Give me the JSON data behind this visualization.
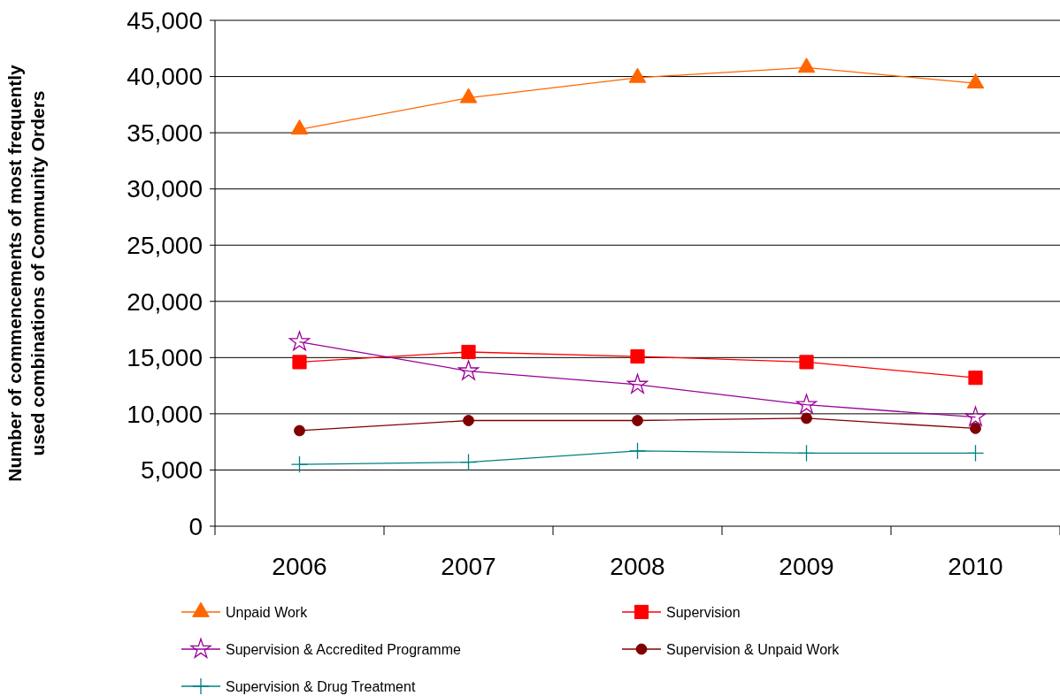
{
  "chart_data": {
    "type": "line",
    "ylabel": "Number of commencements of most frequently used combinations of Community Orders",
    "categories": [
      "2006",
      "2007",
      "2008",
      "2009",
      "2010"
    ],
    "ylim": [
      0,
      45000
    ],
    "yticks": [
      {
        "value": 0,
        "label": "0"
      },
      {
        "value": 5000,
        "label": "5,000"
      },
      {
        "value": 10000,
        "label": "10,000"
      },
      {
        "value": 15000,
        "label": "15,000"
      },
      {
        "value": 20000,
        "label": "20,000"
      },
      {
        "value": 25000,
        "label": "25,000"
      },
      {
        "value": 30000,
        "label": "30,000"
      },
      {
        "value": 35000,
        "label": "35,000"
      },
      {
        "value": 40000,
        "label": "40,000"
      },
      {
        "value": 45000,
        "label": "45,000"
      }
    ],
    "grid": "y",
    "legend": "bottom",
    "series": [
      {
        "name": "Unpaid Work",
        "color": "#ff6600",
        "marker": "triangle",
        "values": [
          35300,
          38100,
          39900,
          40800,
          39400
        ]
      },
      {
        "name": "Supervision",
        "color": "#ff0000",
        "marker": "square",
        "values": [
          14600,
          15500,
          15100,
          14600,
          13200
        ]
      },
      {
        "name": "Supervision & Accredited Programme",
        "color": "#990099",
        "marker": "star",
        "values": [
          16400,
          13800,
          12600,
          10800,
          9700
        ]
      },
      {
        "name": "Supervision & Unpaid Work",
        "color": "#800000",
        "marker": "circle",
        "values": [
          8500,
          9400,
          9400,
          9600,
          8700
        ]
      },
      {
        "name": "Supervision & Drug Treatment",
        "color": "#008080",
        "marker": "cross",
        "values": [
          5500,
          5700,
          6700,
          6500,
          6500
        ]
      }
    ]
  }
}
